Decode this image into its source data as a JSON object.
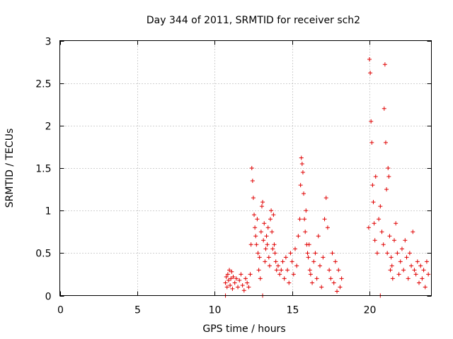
{
  "chart_data": {
    "type": "scatter",
    "title": "Day 344 of 2011, SRMTID for receiver sch2",
    "xlabel": "GPS time / hours",
    "ylabel": "SRMTID / TECUs",
    "xlim": [
      0,
      24
    ],
    "ylim": [
      0,
      3
    ],
    "xticks": [
      0,
      5,
      10,
      15,
      20
    ],
    "yticks": [
      0,
      0.5,
      1,
      1.5,
      2,
      2.5,
      3
    ],
    "xtick_labels": [
      "0",
      "5",
      "10",
      "15",
      "20"
    ],
    "ytick_labels": [
      "0",
      "0.5",
      "1",
      "1.5",
      "2",
      "2.5",
      "3"
    ],
    "grid": true,
    "marker": "+",
    "series": [
      {
        "name": "sch2",
        "color": "#e00000",
        "x": [
          10.7,
          10.75,
          10.8,
          10.85,
          10.9,
          10.95,
          11.0,
          11.05,
          11.1,
          11.15,
          11.2,
          11.3,
          11.4,
          11.5,
          11.6,
          11.7,
          11.8,
          11.9,
          12.0,
          12.1,
          12.2,
          12.3,
          12.35,
          12.4,
          12.45,
          12.5,
          12.55,
          12.6,
          12.65,
          12.7,
          12.75,
          12.8,
          12.85,
          12.9,
          12.95,
          13.0,
          13.05,
          13.1,
          13.15,
          13.2,
          13.25,
          13.3,
          13.35,
          13.4,
          13.45,
          13.5,
          13.55,
          13.6,
          13.65,
          13.7,
          13.75,
          13.8,
          13.85,
          13.9,
          13.95,
          14.0,
          14.1,
          14.2,
          14.3,
          14.4,
          14.5,
          14.6,
          14.7,
          14.8,
          14.9,
          15.0,
          15.1,
          15.2,
          15.3,
          15.4,
          15.5,
          15.55,
          15.6,
          15.65,
          15.7,
          15.75,
          15.8,
          15.85,
          15.9,
          15.95,
          16.0,
          16.05,
          16.1,
          16.15,
          16.2,
          16.3,
          16.4,
          16.5,
          16.6,
          16.7,
          16.8,
          16.9,
          17.0,
          17.1,
          17.2,
          17.3,
          17.4,
          17.5,
          17.6,
          17.7,
          17.8,
          17.9,
          18.0,
          18.1,
          18.2,
          19.95,
          20.0,
          20.05,
          20.1,
          20.15,
          20.2,
          20.25,
          20.3,
          20.35,
          20.4,
          20.5,
          20.6,
          20.7,
          20.8,
          20.9,
          20.95,
          21.0,
          21.05,
          21.1,
          21.15,
          21.2,
          21.25,
          21.3,
          21.35,
          21.4,
          21.45,
          21.5,
          21.6,
          21.7,
          21.8,
          21.9,
          22.0,
          22.1,
          22.2,
          22.3,
          22.4,
          22.5,
          22.6,
          22.7,
          22.8,
          22.9,
          23.0,
          23.1,
          23.2,
          23.3,
          23.4,
          23.5,
          23.6,
          23.7,
          23.8,
          10.7,
          13.1,
          20.7
        ],
        "y": [
          0.15,
          0.22,
          0.1,
          0.25,
          0.18,
          0.3,
          0.12,
          0.2,
          0.28,
          0.08,
          0.22,
          0.15,
          0.2,
          0.1,
          0.18,
          0.25,
          0.12,
          0.06,
          0.2,
          0.15,
          0.1,
          0.25,
          0.6,
          1.5,
          1.35,
          1.15,
          0.95,
          0.8,
          0.7,
          0.6,
          0.9,
          0.5,
          0.3,
          0.45,
          0.2,
          0.75,
          1.05,
          1.1,
          0.65,
          0.85,
          0.4,
          0.55,
          0.7,
          0.6,
          0.8,
          0.45,
          0.35,
          0.9,
          1.0,
          0.75,
          0.55,
          0.95,
          0.6,
          0.5,
          0.4,
          0.3,
          0.35,
          0.25,
          0.3,
          0.4,
          0.2,
          0.45,
          0.3,
          0.15,
          0.5,
          0.4,
          0.25,
          0.55,
          0.35,
          0.7,
          0.9,
          1.3,
          1.62,
          1.55,
          1.45,
          1.2,
          0.9,
          0.75,
          1.0,
          0.6,
          0.5,
          0.45,
          0.6,
          0.3,
          0.25,
          0.15,
          0.4,
          0.5,
          0.2,
          0.7,
          0.35,
          0.1,
          0.45,
          0.9,
          1.15,
          0.8,
          0.3,
          0.2,
          0.5,
          0.15,
          0.4,
          0.05,
          0.3,
          0.1,
          0.2,
          0.8,
          2.78,
          2.62,
          2.05,
          1.8,
          1.3,
          1.1,
          0.85,
          0.65,
          1.4,
          0.5,
          0.9,
          1.05,
          0.75,
          0.6,
          2.2,
          2.72,
          1.8,
          1.25,
          0.5,
          1.5,
          1.4,
          0.7,
          0.3,
          0.45,
          0.35,
          0.2,
          0.65,
          0.85,
          0.5,
          0.25,
          0.4,
          0.55,
          0.3,
          0.65,
          0.45,
          0.2,
          0.5,
          0.35,
          0.75,
          0.3,
          0.25,
          0.4,
          0.15,
          0.35,
          0.2,
          0.3,
          0.1,
          0.4,
          0.25,
          0,
          0,
          0
        ]
      }
    ]
  }
}
